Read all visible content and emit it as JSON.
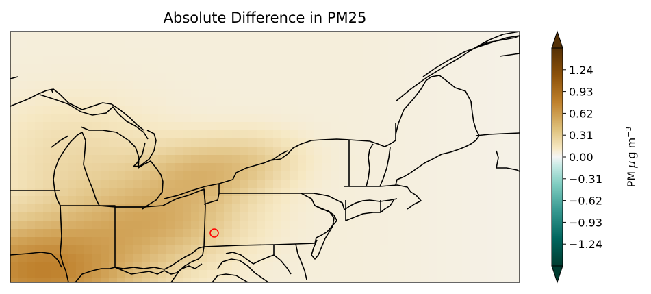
{
  "title": "Absolute Difference in PM25",
  "colorbar": {
    "label_main": "PM ",
    "label_mu": "μ",
    "label_unit": "g m",
    "label_exp": "−3",
    "ticks": [
      "1.24",
      "0.93",
      "0.62",
      "0.31",
      "0.00",
      "−0.31",
      "−0.62",
      "−0.93",
      "−1.24"
    ],
    "tick_values": [
      1.24,
      0.93,
      0.62,
      0.31,
      0.0,
      -0.31,
      -0.62,
      -0.93,
      -1.24
    ],
    "range": [
      -1.55,
      1.55
    ],
    "extend": "both",
    "colormap": "BrBG_r",
    "colors": {
      "max": "#543005",
      "high": "#bf812d",
      "mid_high": "#dfc27d",
      "light": "#f6e8c3",
      "zero": "#f5f5f5",
      "light_neg": "#c7eae5",
      "mid_low": "#80cdc1",
      "low": "#35978f",
      "min": "#003c30"
    }
  },
  "map": {
    "region": "Northeastern United States",
    "marker_color": "#ff0000",
    "border_color": "#000000"
  }
}
